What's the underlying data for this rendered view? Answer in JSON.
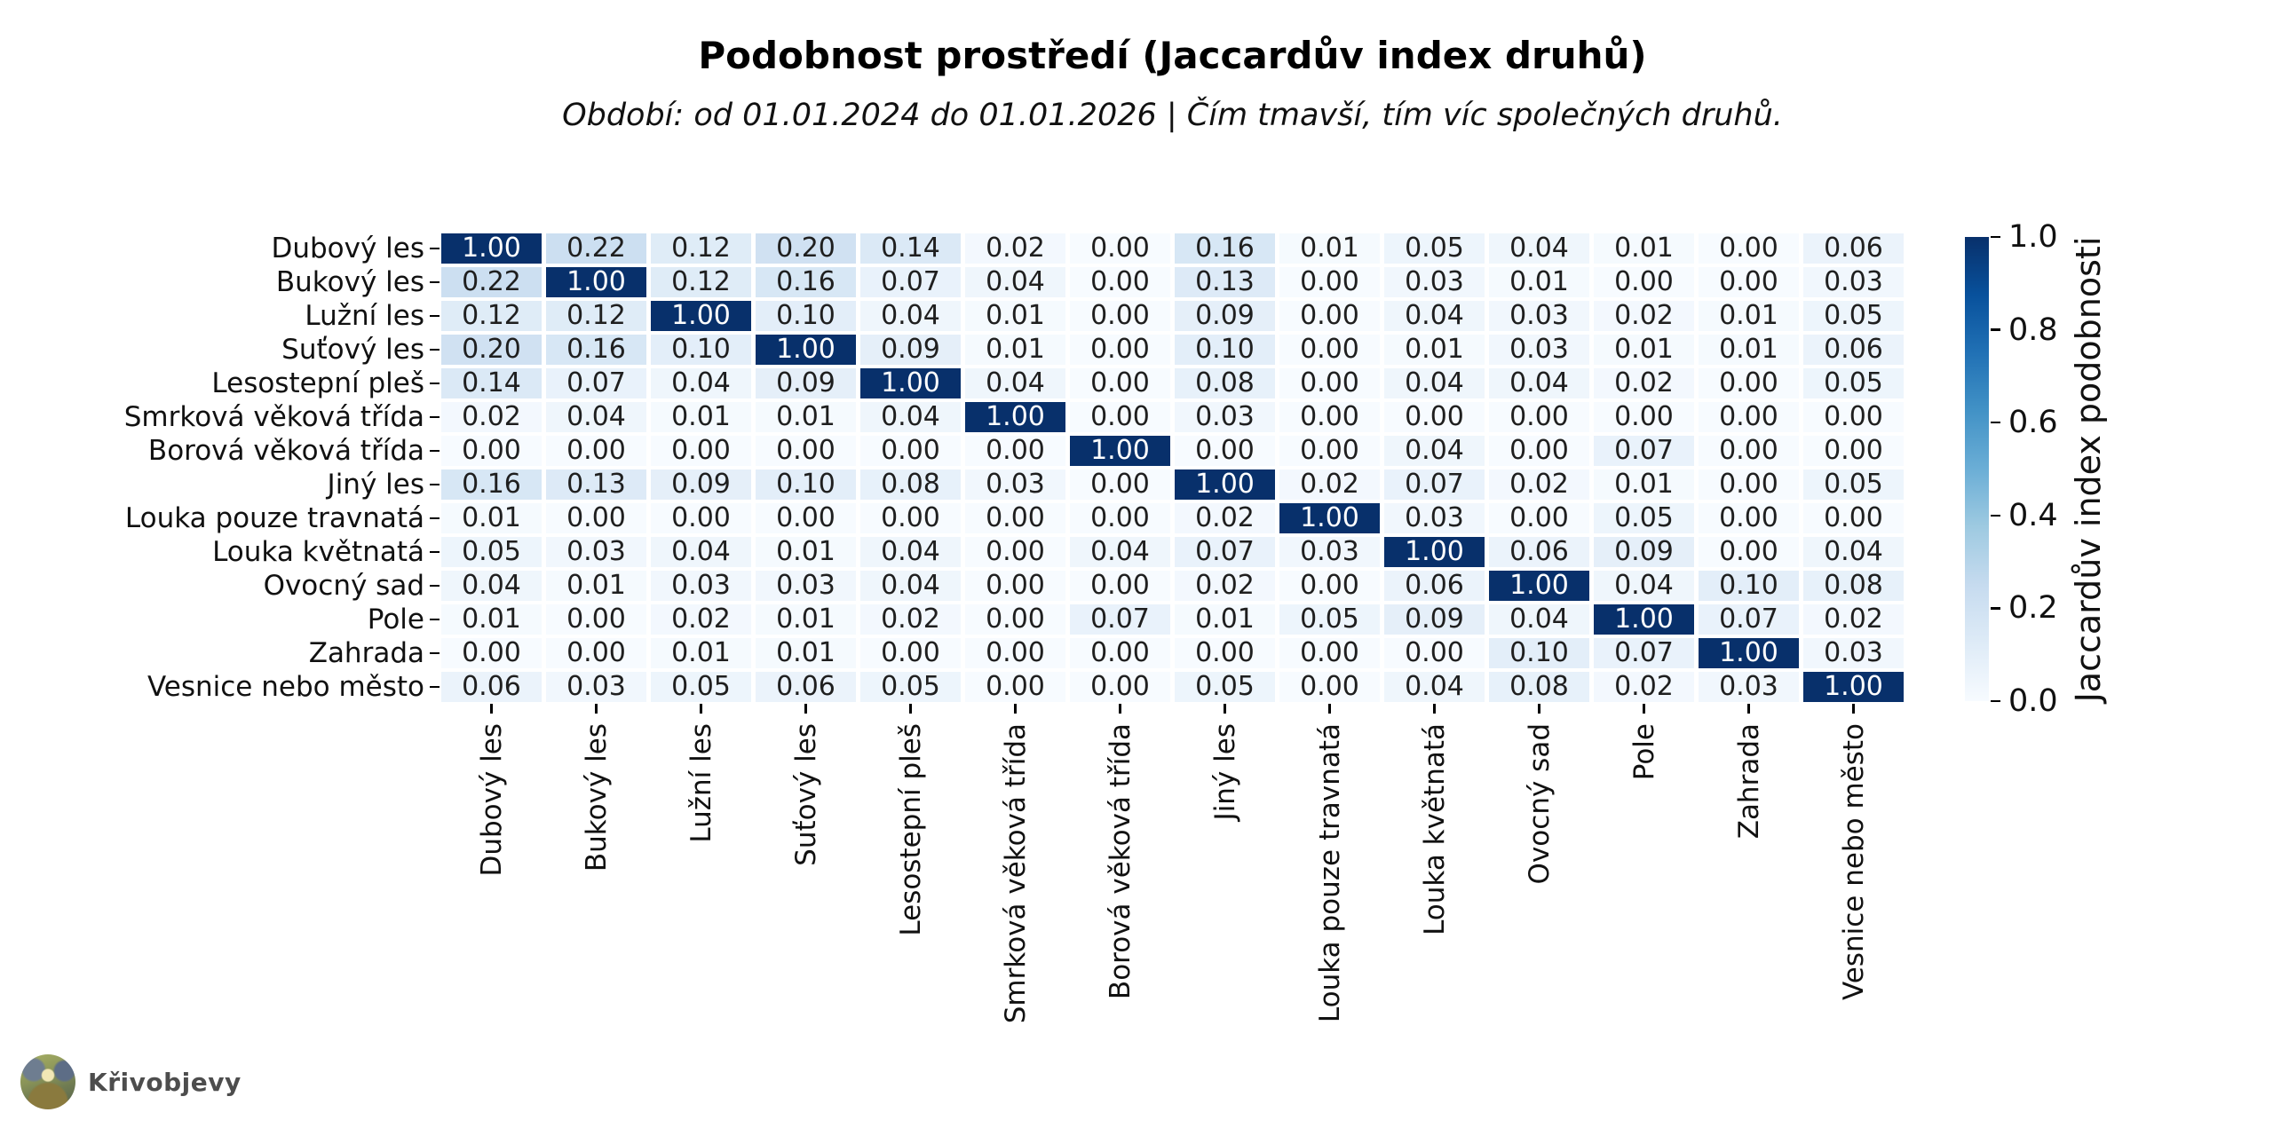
{
  "title": "Podobnost prostředí (Jaccardův index druhů)",
  "subtitle": "Období: od 01.01.2024 do 01.01.2026  |  Čím tmavší, tím víc společných druhů.",
  "watermark": {
    "text": "Křivobjevy"
  },
  "chart_data": {
    "type": "heatmap",
    "title": "Podobnost prostředí (Jaccardův index druhů)",
    "subtitle": "Období: od 01.01.2024 do 01.01.2026  |  Čím tmavší, tím víc společných druhů.",
    "categories": [
      "Dubový les",
      "Bukový les",
      "Lužní les",
      "Suťový les",
      "Lesostepní pleš",
      "Smrková věková třída",
      "Borová věková třída",
      "Jiný les",
      "Louka pouze travnatá",
      "Louka květnatá",
      "Ovocný sad",
      "Pole",
      "Zahrada",
      "Vesnice nebo město"
    ],
    "matrix": [
      [
        1.0,
        0.22,
        0.12,
        0.2,
        0.14,
        0.02,
        0.0,
        0.16,
        0.01,
        0.05,
        0.04,
        0.01,
        0.0,
        0.06
      ],
      [
        0.22,
        1.0,
        0.12,
        0.16,
        0.07,
        0.04,
        0.0,
        0.13,
        0.0,
        0.03,
        0.01,
        0.0,
        0.0,
        0.03
      ],
      [
        0.12,
        0.12,
        1.0,
        0.1,
        0.04,
        0.01,
        0.0,
        0.09,
        0.0,
        0.04,
        0.03,
        0.02,
        0.01,
        0.05
      ],
      [
        0.2,
        0.16,
        0.1,
        1.0,
        0.09,
        0.01,
        0.0,
        0.1,
        0.0,
        0.01,
        0.03,
        0.01,
        0.01,
        0.06
      ],
      [
        0.14,
        0.07,
        0.04,
        0.09,
        1.0,
        0.04,
        0.0,
        0.08,
        0.0,
        0.04,
        0.04,
        0.02,
        0.0,
        0.05
      ],
      [
        0.02,
        0.04,
        0.01,
        0.01,
        0.04,
        1.0,
        0.0,
        0.03,
        0.0,
        0.0,
        0.0,
        0.0,
        0.0,
        0.0
      ],
      [
        0.0,
        0.0,
        0.0,
        0.0,
        0.0,
        0.0,
        1.0,
        0.0,
        0.0,
        0.04,
        0.0,
        0.07,
        0.0,
        0.0
      ],
      [
        0.16,
        0.13,
        0.09,
        0.1,
        0.08,
        0.03,
        0.0,
        1.0,
        0.02,
        0.07,
        0.02,
        0.01,
        0.0,
        0.05
      ],
      [
        0.01,
        0.0,
        0.0,
        0.0,
        0.0,
        0.0,
        0.0,
        0.02,
        1.0,
        0.03,
        0.0,
        0.05,
        0.0,
        0.0
      ],
      [
        0.05,
        0.03,
        0.04,
        0.01,
        0.04,
        0.0,
        0.04,
        0.07,
        0.03,
        1.0,
        0.06,
        0.09,
        0.0,
        0.04
      ],
      [
        0.04,
        0.01,
        0.03,
        0.03,
        0.04,
        0.0,
        0.0,
        0.02,
        0.0,
        0.06,
        1.0,
        0.04,
        0.1,
        0.08
      ],
      [
        0.01,
        0.0,
        0.02,
        0.01,
        0.02,
        0.0,
        0.07,
        0.01,
        0.05,
        0.09,
        0.04,
        1.0,
        0.07,
        0.02
      ],
      [
        0.0,
        0.0,
        0.01,
        0.01,
        0.0,
        0.0,
        0.0,
        0.0,
        0.0,
        0.0,
        0.1,
        0.07,
        1.0,
        0.03
      ],
      [
        0.06,
        0.03,
        0.05,
        0.06,
        0.05,
        0.0,
        0.0,
        0.05,
        0.0,
        0.04,
        0.08,
        0.02,
        0.03,
        1.0
      ]
    ],
    "value_decimals": 2,
    "vmin": 0.0,
    "vmax": 1.0,
    "colorbar": {
      "label": "Jaccardův index podobnosti",
      "ticks": [
        "0.0",
        "0.2",
        "0.4",
        "0.6",
        "0.8",
        "1.0"
      ],
      "tick_values": [
        0.0,
        0.2,
        0.4,
        0.6,
        0.8,
        1.0
      ],
      "colormap": "Blues",
      "gradient_stops": [
        "#f7fbff",
        "#deebf7",
        "#c6dbef",
        "#9ecae1",
        "#6baed6",
        "#4292c6",
        "#2171b5",
        "#08519c",
        "#08306b"
      ],
      "color_low": "#f7fbff",
      "color_high": "#08306b"
    },
    "annotation_color_dark": "#1f1f1f",
    "annotation_color_light": "#ffffff",
    "grid_gap_color": "#ffffff",
    "legend_position": "right"
  }
}
